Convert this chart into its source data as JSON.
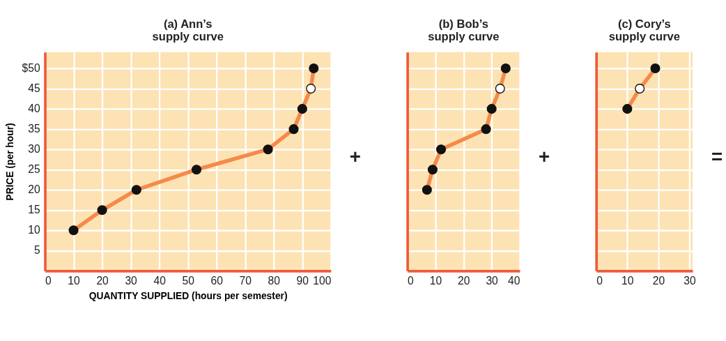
{
  "chart_data": [
    {
      "type": "line",
      "title": "(a) Ann’s\nsupply curve",
      "xlabel": "QUANTITY SUPPLIED (hours per semester)",
      "ylabel": "PRICE (per hour)",
      "x": [
        10,
        20,
        32,
        53,
        78,
        87,
        90,
        93,
        94
      ],
      "series": [
        {
          "color": "#f58a4b",
          "values": [
            10,
            15,
            20,
            25,
            30,
            35,
            40,
            45,
            50
          ],
          "colors": [
            "#111111",
            "#111111",
            "#111111",
            "#111111",
            "#111111",
            "#111111",
            "#111111",
            "#ffffff",
            "#111111"
          ]
        }
      ],
      "xlim": [
        0,
        100
      ],
      "xticks": [
        0,
        10,
        20,
        30,
        40,
        50,
        60,
        70,
        80,
        90,
        100
      ],
      "ylim": [
        0,
        54
      ],
      "yticks": [
        5,
        10,
        15,
        20,
        25,
        30,
        35,
        40,
        45,
        {
          "value": 50,
          "label": "$50"
        }
      ],
      "grid": true,
      "marker": "circle",
      "annotations": [
        "+"
      ]
    },
    {
      "type": "line",
      "title": "(b) Bob’s\nsupply curve",
      "x": [
        7,
        9,
        12,
        28,
        30,
        33,
        35
      ],
      "series": [
        {
          "color": "#f58a4b",
          "values": [
            20,
            25,
            30,
            35,
            40,
            45,
            50
          ],
          "colors": [
            "#111111",
            "#111111",
            "#111111",
            "#111111",
            "#111111",
            "#ffffff",
            "#111111"
          ]
        }
      ],
      "xlim": [
        0,
        40
      ],
      "xticks": [
        0,
        10,
        20,
        30,
        40
      ],
      "ylim": [
        0,
        54
      ],
      "yticks": [
        5,
        10,
        15,
        20,
        25,
        30,
        35,
        40,
        45,
        50
      ],
      "tick_labels": "x",
      "grid": true,
      "marker": "circle",
      "annotations": [
        "+"
      ]
    },
    {
      "type": "line",
      "title": "(c) Cory’s\nsupply curve",
      "x": [
        10,
        14,
        19
      ],
      "series": [
        {
          "color": "#f58a4b",
          "values": [
            40,
            45,
            50
          ],
          "colors": [
            "#111111",
            "#ffffff",
            "#111111"
          ]
        }
      ],
      "xlim": [
        0,
        31
      ],
      "xticks": [
        0,
        10,
        20,
        30
      ],
      "ylim": [
        0,
        54
      ],
      "yticks": [
        5,
        10,
        15,
        20,
        25,
        30,
        35,
        40,
        45,
        50
      ],
      "tick_labels": "x",
      "grid": true,
      "marker": "circle",
      "annotations": [
        "="
      ]
    }
  ]
}
